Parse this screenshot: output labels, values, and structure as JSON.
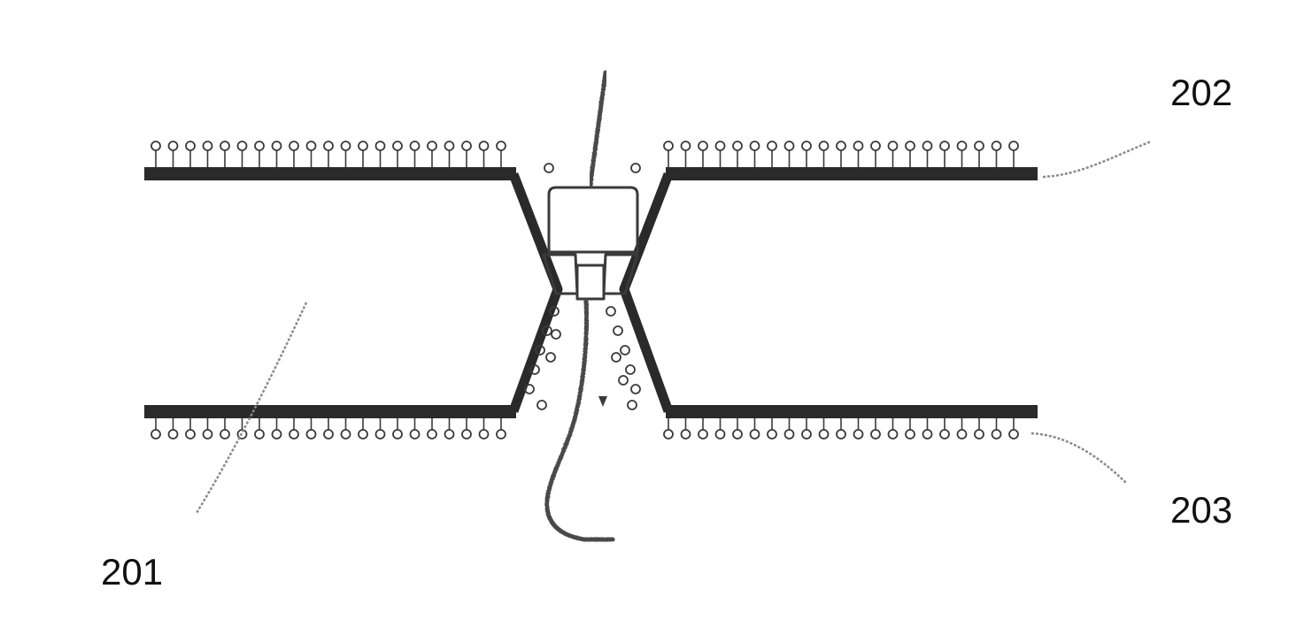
{
  "labels": {
    "membrane_reference": "201",
    "upper_leaflet_reference": "202",
    "lower_leaflet_reference": "203"
  },
  "colors": {
    "membrane": "#2a2a2a",
    "lipid_head": "#3a3a3a",
    "leader_line": "#8a8a8a",
    "label_text": "#111111",
    "background": "#ffffff"
  }
}
